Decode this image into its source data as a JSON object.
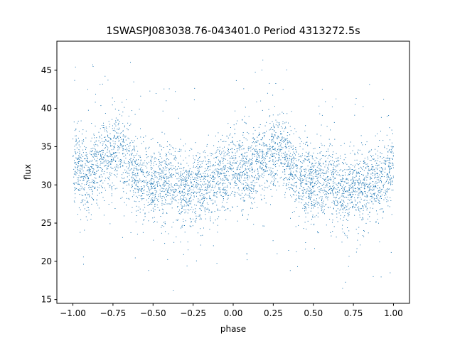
{
  "chart_data": {
    "type": "scatter",
    "title": "1SWASPJ083038.76-043401.0 Period 4313272.5s",
    "xlabel": "phase",
    "ylabel": "flux",
    "xlim": [
      -1.1,
      1.1
    ],
    "ylim": [
      14.5,
      48.8
    ],
    "x_ticks": [
      -1.0,
      -0.75,
      -0.5,
      -0.25,
      0.0,
      0.25,
      0.5,
      0.75,
      1.0
    ],
    "x_tick_labels": [
      "−1.00",
      "−0.75",
      "−0.50",
      "−0.25",
      "0.00",
      "0.25",
      "0.50",
      "0.75",
      "1.00"
    ],
    "y_ticks": [
      15,
      20,
      25,
      30,
      35,
      40,
      45
    ],
    "y_tick_labels": [
      "15",
      "20",
      "25",
      "30",
      "35",
      "40",
      "45"
    ],
    "grid": false,
    "marker_color": "#1f77b4",
    "phase_range": [
      -1.0,
      1.0
    ],
    "flux_range": [
      15.8,
      47.0
    ],
    "profile": {
      "description_points": [
        {
          "phase": -1.0,
          "flux": 32.5
        },
        {
          "phase": -0.9,
          "flux": 31.5
        },
        {
          "phase": -0.8,
          "flux": 33.5
        },
        {
          "phase": -0.7,
          "flux": 35.0
        },
        {
          "phase": -0.6,
          "flux": 31.0
        },
        {
          "phase": -0.5,
          "flux": 30.0
        },
        {
          "phase": -0.4,
          "flux": 30.5
        },
        {
          "phase": -0.3,
          "flux": 29.0
        },
        {
          "phase": -0.2,
          "flux": 30.0
        },
        {
          "phase": -0.1,
          "flux": 30.5
        },
        {
          "phase": 0.0,
          "flux": 32.5
        },
        {
          "phase": 0.1,
          "flux": 31.5
        },
        {
          "phase": 0.2,
          "flux": 33.5
        },
        {
          "phase": 0.3,
          "flux": 35.0
        },
        {
          "phase": 0.4,
          "flux": 31.0
        },
        {
          "phase": 0.5,
          "flux": 30.0
        },
        {
          "phase": 0.6,
          "flux": 30.5
        },
        {
          "phase": 0.7,
          "flux": 29.0
        },
        {
          "phase": 0.8,
          "flux": 30.0
        },
        {
          "phase": 0.9,
          "flux": 30.5
        },
        {
          "phase": 1.0,
          "flux": 32.5
        }
      ],
      "scatter_spread": 2.5
    }
  }
}
